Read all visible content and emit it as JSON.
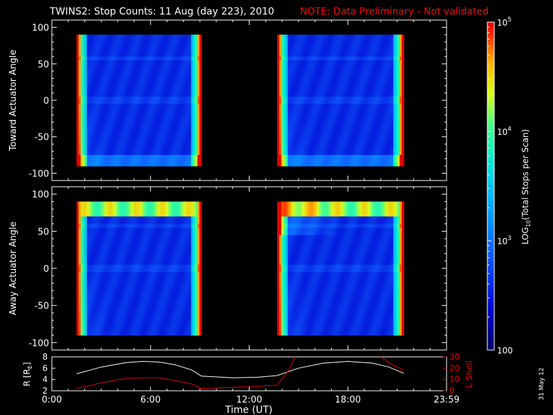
{
  "title": "TWINS2: Stop Counts: 11 Aug (day 223), 2010",
  "note": "NOTE: Data Preliminary - Not validated",
  "date_stamp": "31 May 12",
  "colors": {
    "background": "#000000",
    "foreground": "#ffffff",
    "note": "#ff0000",
    "lshell": "#dd0000",
    "radius": "#ffffff"
  },
  "chart_data": [
    {
      "type": "heatmap",
      "panel": "toward",
      "ylabel": "Toward Actuator Angle",
      "ylim": [
        -110,
        110
      ],
      "yticks": [
        100,
        50,
        0,
        -50,
        -100
      ],
      "xlim": [
        0,
        24
      ],
      "data_intervals_hours": [
        [
          1.5,
          9.1
        ],
        [
          13.7,
          21.4
        ]
      ],
      "angle_range": [
        -90,
        90
      ],
      "log_counts_typical": 2.6,
      "log_counts_edge_max": 5.0
    },
    {
      "type": "heatmap",
      "panel": "away",
      "ylabel": "Away Actuator Angle",
      "ylim": [
        -110,
        110
      ],
      "yticks": [
        100,
        50,
        0,
        -50,
        -100
      ],
      "xlim": [
        0,
        24
      ],
      "data_intervals_hours": [
        [
          1.5,
          9.1
        ],
        [
          13.7,
          21.4
        ]
      ],
      "angle_range": [
        -90,
        90
      ],
      "log_counts_typical": 2.6,
      "log_counts_edge_max": 5.0
    },
    {
      "type": "line",
      "panel": "orbit",
      "xlabel": "Time (UT)",
      "xticks": [
        "0:00",
        "6:00",
        "12:00",
        "18:00",
        "23:59"
      ],
      "xlim": [
        0,
        24
      ],
      "left_axis": {
        "label": "R [RE]",
        "ylim": [
          2,
          8
        ],
        "yticks": [
          "8",
          "6",
          "4",
          "2"
        ]
      },
      "right_axis": {
        "label": "L Shell",
        "ylim": [
          0,
          30
        ],
        "yticks": [
          "30",
          "20",
          "10",
          "0"
        ]
      },
      "series": [
        {
          "axis": "left",
          "x": [
            1.5,
            3,
            4.5,
            5.5,
            6.5,
            7.5,
            8.5,
            9.1,
            11,
            12.5,
            13.7,
            15,
            16.5,
            18,
            19.5,
            20.5,
            21.4
          ],
          "y": [
            5.0,
            6.2,
            7.0,
            7.2,
            7.1,
            6.6,
            5.7,
            4.6,
            4.3,
            4.4,
            4.7,
            6.0,
            6.9,
            7.2,
            6.9,
            6.2,
            5.1
          ]
        },
        {
          "axis": "right",
          "segments": [
            {
              "x": [
                1.5,
                3,
                4.5,
                5.5,
                6.5,
                7.5,
                8.5,
                9.1,
                11,
                12.5,
                13.7,
                14.4,
                14.8
              ],
              "y": [
                2,
                7,
                11,
                11.5,
                11.5,
                9,
                6,
                2,
                3,
                4,
                5,
                18,
                30
              ]
            },
            {
              "x": [
                20.0,
                20.6,
                21.4
              ],
              "y": [
                30,
                24,
                18
              ]
            }
          ]
        }
      ]
    }
  ],
  "colorbar": {
    "label": "LOG10(Total Stops per Scan)",
    "label_main": "LOG",
    "label_sub": "10",
    "label_rest": "(Total Stops per Scan)",
    "tick_labels": [
      {
        "base": "10",
        "exp": "5",
        "value": 5
      },
      {
        "base": "10",
        "exp": "4",
        "value": 4
      },
      {
        "base": "10",
        "exp": "3",
        "value": 3
      },
      {
        "base": "100",
        "exp": "",
        "value": 2
      }
    ],
    "range": [
      2,
      5
    ]
  }
}
